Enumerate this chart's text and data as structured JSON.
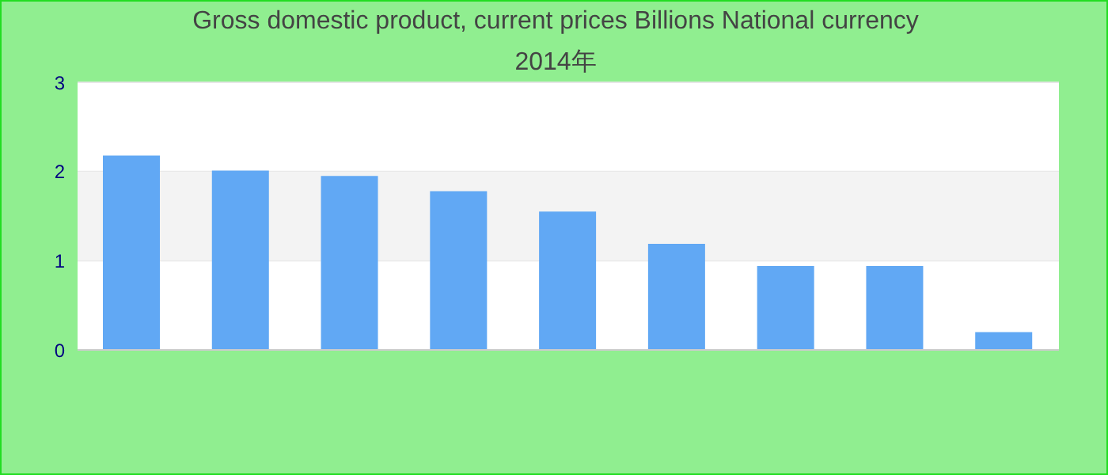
{
  "chart_data": {
    "type": "bar",
    "title": "Gross domestic product, current prices Billions National currency",
    "subtitle": "2014年",
    "categories": [
      null,
      null,
      null,
      null,
      null,
      null,
      null,
      null,
      null
    ],
    "values": [
      2.18,
      2.01,
      1.95,
      1.78,
      1.55,
      1.19,
      0.94,
      0.94,
      0.2
    ],
    "color": "#61a8f4",
    "ylim": [
      0,
      3
    ],
    "yticks": [
      0,
      1,
      2,
      3
    ],
    "grid": "y",
    "bands": [
      {
        "axis": "y",
        "from": 1,
        "to": 2,
        "color": "#f3f3f3"
      }
    ]
  }
}
